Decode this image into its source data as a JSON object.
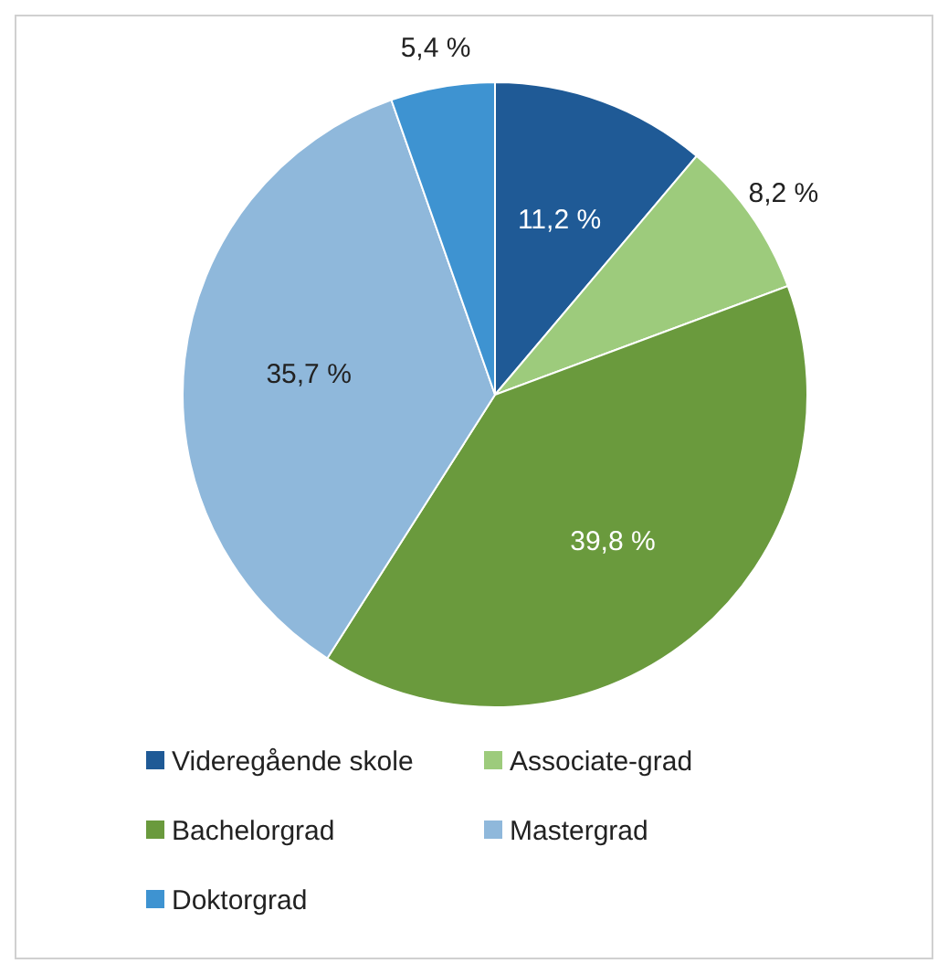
{
  "chart_data": {
    "type": "pie",
    "categories": [
      "Videregående skole",
      "Associate-grad",
      "Bachelorgrad",
      "Mastergrad",
      "Doktorgrad"
    ],
    "values": [
      11.2,
      8.2,
      39.8,
      35.7,
      5.4
    ],
    "value_labels": [
      "11,2 %",
      "8,2 %",
      "39,8 %",
      "35,7 %",
      "5,4 %"
    ],
    "colors": [
      "#1f5a96",
      "#9dcb7c",
      "#6a9a3d",
      "#8fb8db",
      "#3e93d1"
    ],
    "legend": "bottom"
  }
}
